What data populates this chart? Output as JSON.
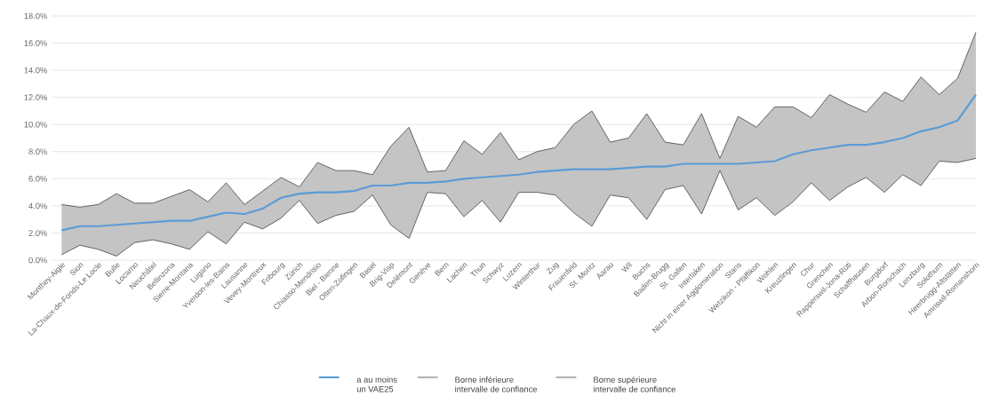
{
  "chart_data": {
    "type": "line",
    "categories": [
      "Monthey-Aigle",
      "Sion",
      "La-Chaux-de-Fonds-Le Locle",
      "Bulle",
      "Locarno",
      "Neuchâtel",
      "Bellinzona",
      "Sierre-Montana",
      "Lugano",
      "Yverdon-les-Bains",
      "Lausanne",
      "Vevey-Montreux",
      "Fribourg",
      "Zürich",
      "Chiasso-Mendrisio",
      "Biel - Bienne",
      "Olten-Zofingen",
      "Basel",
      "Brig-Visp",
      "Delémont",
      "Genève",
      "Bern",
      "Lachen",
      "Thun",
      "Schwyz",
      "Luzern",
      "Winterthur",
      "Zug",
      "Frauenfeld",
      "St. Moritz",
      "Aarau",
      "Wil",
      "Buchs",
      "Baden-Brugg",
      "St. Gallen",
      "Interlaken",
      "Nicht in einer Agglomeration",
      "Stans",
      "Wetzikon - Pfäffikon",
      "Wohlen",
      "Kreuzlingen",
      "Chur",
      "Grenchen",
      "Rapperswil-Jona-Rüti",
      "Schaffhausen",
      "Burgdorf",
      "Arbon-Rorschach",
      "Lenzburg",
      "Solothurn",
      "Heerbrugg-Altstätten",
      "Amriswil-Romanshorn"
    ],
    "series": [
      {
        "name": "a au moins un VAE25",
        "color": "#5b9bd5",
        "values": [
          2.2,
          2.5,
          2.5,
          2.6,
          2.7,
          2.8,
          2.9,
          2.9,
          3.2,
          3.5,
          3.4,
          3.8,
          4.6,
          4.9,
          5.0,
          5.0,
          5.1,
          5.5,
          5.5,
          5.7,
          5.7,
          5.8,
          6.0,
          6.1,
          6.2,
          6.3,
          6.5,
          6.6,
          6.7,
          6.7,
          6.7,
          6.8,
          6.9,
          6.9,
          7.1,
          7.1,
          7.1,
          7.1,
          7.2,
          7.3,
          7.8,
          8.1,
          8.3,
          8.5,
          8.5,
          8.7,
          9.0,
          9.5,
          9.8,
          10.3,
          12.2
        ],
        "lower": [
          0.4,
          1.1,
          0.8,
          0.3,
          1.3,
          1.5,
          1.2,
          0.8,
          2.1,
          1.2,
          2.8,
          2.3,
          3.1,
          4.4,
          2.7,
          3.3,
          3.6,
          4.8,
          2.6,
          1.6,
          5.0,
          4.9,
          3.2,
          4.4,
          2.8,
          5.0,
          5.0,
          4.8,
          3.5,
          2.5,
          4.8,
          4.6,
          3.0,
          5.2,
          5.5,
          3.4,
          6.6,
          3.7,
          4.6,
          3.3,
          4.3,
          5.7,
          4.4,
          5.4,
          6.1,
          5.0,
          6.3,
          5.5,
          7.3,
          7.2,
          7.5
        ],
        "upper": [
          4.1,
          3.9,
          4.1,
          4.9,
          4.2,
          4.2,
          4.7,
          5.2,
          4.3,
          5.7,
          4.1,
          5.1,
          6.1,
          5.4,
          7.2,
          6.6,
          6.6,
          6.3,
          8.4,
          9.8,
          6.5,
          6.6,
          8.8,
          7.8,
          9.4,
          7.4,
          8.0,
          8.3,
          10.0,
          11.0,
          8.7,
          9.0,
          10.8,
          8.7,
          8.5,
          10.8,
          7.5,
          10.6,
          9.8,
          11.3,
          11.3,
          10.5,
          12.2,
          11.5,
          10.9,
          12.4,
          11.7,
          13.5,
          12.2,
          13.4,
          16.8
        ]
      },
      {
        "name": "Borne inférieure intervalle de confiance",
        "color": "#595959",
        "values": [
          0.4,
          1.1,
          0.8,
          0.3,
          1.3,
          1.5,
          1.2,
          0.8,
          2.1,
          1.2,
          2.8,
          2.3,
          3.1,
          4.4,
          2.7,
          3.3,
          3.6,
          4.8,
          2.6,
          1.6,
          5.0,
          4.9,
          3.2,
          4.4,
          2.8,
          5.0,
          5.0,
          4.8,
          3.5,
          2.5,
          4.8,
          4.6,
          3.0,
          5.2,
          5.5,
          3.4,
          6.6,
          3.7,
          4.6,
          3.3,
          4.3,
          5.7,
          4.4,
          5.4,
          6.1,
          5.0,
          6.3,
          5.5,
          7.3,
          7.2,
          7.5
        ]
      },
      {
        "name": "Borne supérieure intervalle de confiance",
        "color": "#595959",
        "values": [
          4.1,
          3.9,
          4.1,
          4.9,
          4.2,
          4.2,
          4.7,
          5.2,
          4.3,
          5.7,
          4.1,
          5.1,
          6.1,
          5.4,
          7.2,
          6.6,
          6.6,
          6.3,
          8.4,
          9.8,
          6.5,
          6.6,
          8.8,
          7.8,
          9.4,
          7.4,
          8.0,
          8.3,
          10.0,
          11.0,
          8.7,
          9.0,
          10.8,
          8.7,
          8.5,
          10.8,
          7.5,
          10.6,
          9.8,
          11.3,
          11.3,
          10.5,
          12.2,
          11.5,
          10.9,
          12.4,
          11.7,
          13.5,
          12.2,
          13.4,
          16.8
        ]
      }
    ],
    "ylim": [
      0,
      18
    ],
    "yticks": [
      {
        "value": 0,
        "label": "0.0%"
      },
      {
        "value": 2,
        "label": "2.0%"
      },
      {
        "value": 4,
        "label": "4.0%"
      },
      {
        "value": 6,
        "label": "6.0%"
      },
      {
        "value": 8,
        "label": "8.0%"
      },
      {
        "value": 10,
        "label": "10.0%"
      },
      {
        "value": 12,
        "label": "12.0%"
      },
      {
        "value": 14,
        "label": "14.0%"
      },
      {
        "value": 16,
        "label": "16.0%"
      },
      {
        "value": 18,
        "label": "18.0%"
      }
    ],
    "grid": "y",
    "legend": "bottom",
    "marker": "none",
    "line_style": "solid"
  }
}
